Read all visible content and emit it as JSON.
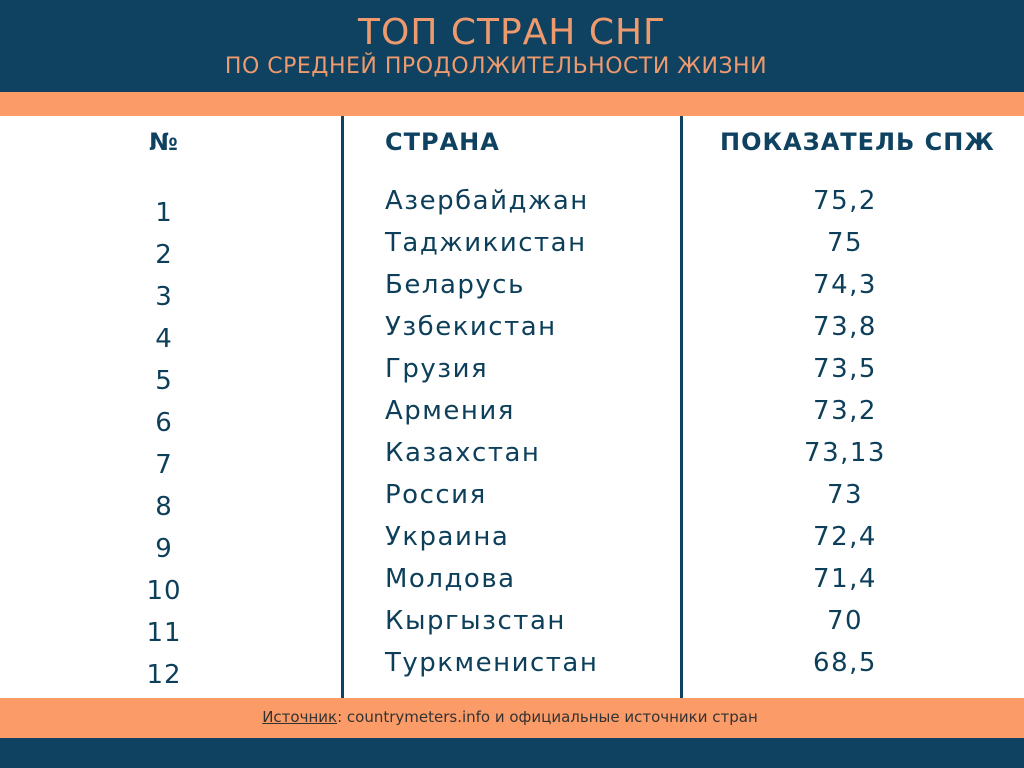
{
  "header": {
    "title": "ТОП СТРАН СНГ",
    "subtitle": "ПО СРЕДНЕЙ ПРОДОЛЖИТЕЛЬНОСТИ ЖИЗНИ"
  },
  "table": {
    "headers": {
      "num": "№",
      "country": "СТРАНА",
      "value": "ПОКАЗАТЕЛЬ СПЖ"
    },
    "rows": [
      {
        "num": "1",
        "country": "Азербайджан",
        "value": "75,2"
      },
      {
        "num": "2",
        "country": "Таджикистан",
        "value": "75"
      },
      {
        "num": "3",
        "country": "Беларусь",
        "value": "74,3"
      },
      {
        "num": "4",
        "country": "Узбекистан",
        "value": "73,8"
      },
      {
        "num": "5",
        "country": "Грузия",
        "value": "73,5"
      },
      {
        "num": "6",
        "country": "Армения",
        "value": "73,2"
      },
      {
        "num": "7",
        "country": "Казахстан",
        "value": "73,13"
      },
      {
        "num": "8",
        "country": "Россия",
        "value": "73"
      },
      {
        "num": "9",
        "country": "Украина",
        "value": "72,4"
      },
      {
        "num": "10",
        "country": "Молдова",
        "value": "71,4"
      },
      {
        "num": "11",
        "country": "Кыргызстан",
        "value": "70"
      },
      {
        "num": "12",
        "country": "Туркменистан",
        "value": "68,5"
      }
    ]
  },
  "source": {
    "label": "Источник",
    "text": ": countrymeters.info и официальные источники стран"
  },
  "colors": {
    "navy": "#0e4260",
    "orange": "#fb9b67",
    "title_orange": "#ee9a6e",
    "text": "#0d3f5a"
  }
}
